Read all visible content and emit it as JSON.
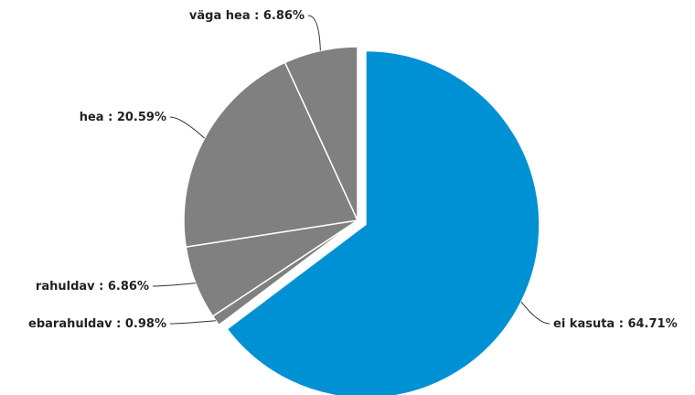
{
  "chart_data": {
    "type": "pie",
    "categories": [
      "ei kasuta",
      "ebarahuldav",
      "rahuldav",
      "hea",
      "väga hea"
    ],
    "values": [
      64.71,
      0.98,
      6.86,
      20.59,
      6.86
    ],
    "value_labels": [
      "64.71%",
      "0.98%",
      "6.86%",
      "20.59%",
      "6.86%"
    ],
    "label_separator": " : ",
    "colors": [
      "#0090d4",
      "#808080",
      "#808080",
      "#808080",
      "#808080"
    ]
  }
}
